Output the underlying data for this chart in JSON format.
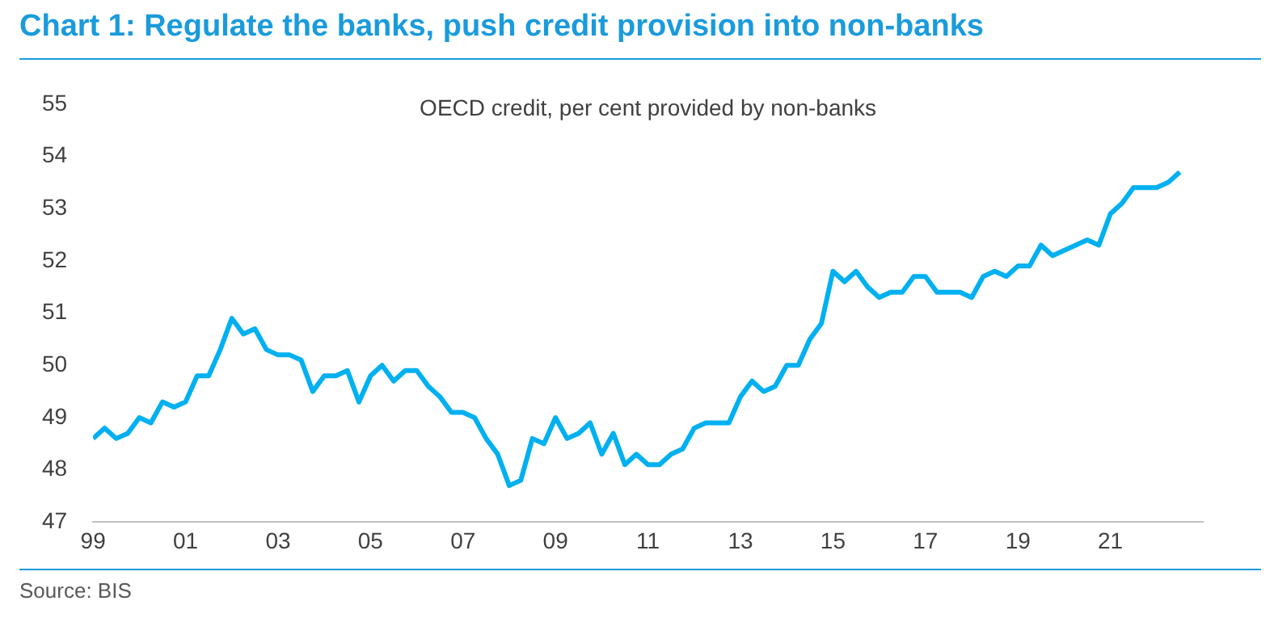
{
  "chart_data": {
    "type": "line",
    "title": "Chart 1: Regulate the banks, push credit provision into non-banks",
    "subtitle": "OECD credit, per cent provided by non-banks",
    "annotations": [
      "Source: BIS"
    ],
    "x": [
      1999,
      1999.25,
      1999.5,
      1999.75,
      2000,
      2000.25,
      2000.5,
      2000.75,
      2001,
      2001.25,
      2001.5,
      2001.75,
      2002,
      2002.25,
      2002.5,
      2002.75,
      2003,
      2003.25,
      2003.5,
      2003.75,
      2004,
      2004.25,
      2004.5,
      2004.75,
      2005,
      2005.25,
      2005.5,
      2005.75,
      2006,
      2006.25,
      2006.5,
      2006.75,
      2007,
      2007.25,
      2007.5,
      2007.75,
      2008,
      2008.25,
      2008.5,
      2008.75,
      2009,
      2009.25,
      2009.5,
      2009.75,
      2010,
      2010.25,
      2010.5,
      2010.75,
      2011,
      2011.25,
      2011.5,
      2011.75,
      2012,
      2012.25,
      2012.5,
      2012.75,
      2013,
      2013.25,
      2013.5,
      2013.75,
      2014,
      2014.25,
      2014.5,
      2014.75,
      2015,
      2015.25,
      2015.5,
      2015.75,
      2016,
      2016.25,
      2016.5,
      2016.75,
      2017,
      2017.25,
      2017.5,
      2017.75,
      2018,
      2018.25,
      2018.5,
      2018.75,
      2019,
      2019.25,
      2019.5,
      2019.75,
      2020,
      2020.25,
      2020.5,
      2020.75,
      2021,
      2021.25,
      2021.5,
      2021.75,
      2022,
      2022.25,
      2022.5
    ],
    "series": [
      {
        "color": "#00b0f0",
        "values": [
          48.6,
          48.8,
          48.6,
          48.7,
          49.0,
          48.9,
          49.3,
          49.2,
          49.3,
          49.8,
          49.8,
          50.3,
          50.9,
          50.6,
          50.7,
          50.3,
          50.2,
          50.2,
          50.1,
          49.5,
          49.8,
          49.8,
          49.9,
          49.3,
          49.8,
          50.0,
          49.7,
          49.9,
          49.9,
          49.6,
          49.4,
          49.1,
          49.1,
          49.0,
          48.6,
          48.3,
          47.7,
          47.8,
          48.6,
          48.5,
          49.0,
          48.6,
          48.7,
          48.9,
          48.3,
          48.7,
          48.1,
          48.3,
          48.1,
          48.1,
          48.3,
          48.4,
          48.8,
          48.9,
          48.9,
          48.9,
          49.4,
          49.7,
          49.5,
          49.6,
          50.0,
          50.0,
          50.5,
          50.8,
          51.8,
          51.6,
          51.8,
          51.5,
          51.3,
          51.4,
          51.4,
          51.7,
          51.7,
          51.4,
          51.4,
          51.4,
          51.3,
          51.7,
          51.8,
          51.7,
          51.9,
          51.9,
          52.3,
          52.1,
          52.2,
          52.3,
          52.4,
          52.3,
          52.9,
          53.1,
          53.4,
          53.4,
          53.4,
          53.5,
          53.7
        ]
      }
    ],
    "xlim": [
      1999,
      2023
    ],
    "xticks": [
      {
        "value": 1999,
        "label": "99"
      },
      {
        "value": 2001,
        "label": "01"
      },
      {
        "value": 2003,
        "label": "03"
      },
      {
        "value": 2005,
        "label": "05"
      },
      {
        "value": 2007,
        "label": "07"
      },
      {
        "value": 2009,
        "label": "09"
      },
      {
        "value": 2011,
        "label": "11"
      },
      {
        "value": 2013,
        "label": "13"
      },
      {
        "value": 2015,
        "label": "15"
      },
      {
        "value": 2017,
        "label": "17"
      },
      {
        "value": 2019,
        "label": "19"
      },
      {
        "value": 2021,
        "label": "21"
      }
    ],
    "ylim": [
      47,
      55
    ],
    "yticks": [
      47,
      48,
      49,
      50,
      51,
      52,
      53,
      54,
      55
    ],
    "grid": false,
    "legend": false,
    "marker": "none",
    "line_style": "solid"
  }
}
